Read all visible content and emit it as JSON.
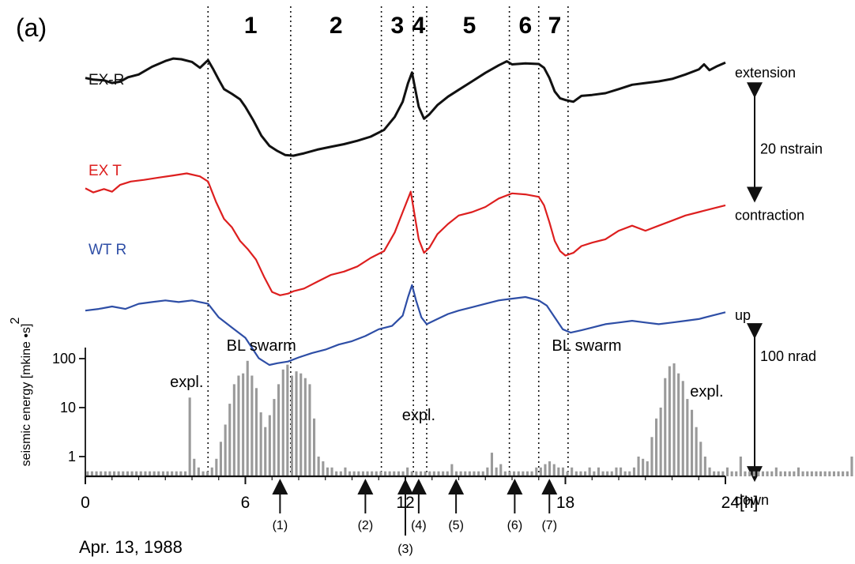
{
  "panel_label": "(a)",
  "date_label": "Apr. 13, 1988",
  "chart_data": {
    "type": "line",
    "x_range": [
      0,
      24
    ],
    "x_ticks": [
      {
        "value": 0,
        "label": "0"
      },
      {
        "value": 6,
        "label": "6"
      },
      {
        "value": 12,
        "label": "12"
      },
      {
        "value": 18,
        "label": "18"
      },
      {
        "value": 24,
        "label": "24[h]"
      }
    ],
    "phases": {
      "boundaries": [
        4.6,
        7.7,
        11.1,
        12.3,
        12.8,
        15.9,
        17.0,
        18.1
      ],
      "labels": [
        {
          "label": "1",
          "x": 6.2
        },
        {
          "label": "2",
          "x": 9.4
        },
        {
          "label": "3",
          "x": 11.7
        },
        {
          "label": "4",
          "x": 12.5
        },
        {
          "label": "5",
          "x": 14.4
        },
        {
          "label": "6",
          "x": 16.5
        },
        {
          "label": "7",
          "x": 17.6
        }
      ]
    },
    "series": [
      {
        "name": "EX-R",
        "color": "#111111",
        "x": [
          0,
          0.3,
          0.7,
          1.0,
          1.3,
          1.6,
          2.0,
          2.5,
          3.0,
          3.3,
          3.6,
          4.0,
          4.3,
          4.5,
          4.6,
          4.8,
          5.0,
          5.2,
          5.5,
          5.8,
          6.0,
          6.3,
          6.6,
          6.9,
          7.2,
          7.5,
          7.8,
          8.2,
          8.7,
          9.2,
          9.7,
          10.2,
          10.7,
          11.2,
          11.6,
          11.9,
          12.1,
          12.25,
          12.35,
          12.5,
          12.7,
          12.9,
          13.2,
          13.6,
          14.0,
          14.5,
          15.0,
          15.5,
          15.8,
          16.0,
          16.5,
          17.0,
          17.2,
          17.4,
          17.6,
          17.8,
          18.0,
          18.3,
          18.6,
          19.0,
          19.5,
          20.0,
          20.5,
          21.0,
          21.5,
          22.0,
          22.5,
          23.0,
          23.2,
          23.4,
          23.7,
          24.0
        ],
        "y": [
          -5.5,
          -6.0,
          -6.2,
          -7.0,
          -6.6,
          -5.3,
          -4.5,
          -2.2,
          -0.5,
          0.2,
          0.0,
          -0.8,
          -2.5,
          -1.0,
          -0.3,
          -3.0,
          -6.0,
          -8.8,
          -10.2,
          -11.8,
          -14.0,
          -18.0,
          -22.5,
          -25.5,
          -27.0,
          -28.2,
          -28.4,
          -27.7,
          -26.6,
          -25.8,
          -25.0,
          -24.0,
          -22.8,
          -20.8,
          -17.0,
          -12.5,
          -7.0,
          -3.9,
          -8.0,
          -14.0,
          -17.5,
          -16.2,
          -13.5,
          -11.0,
          -9.0,
          -6.5,
          -4.0,
          -1.8,
          -0.6,
          -1.5,
          -1.2,
          -1.4,
          -2.5,
          -5.5,
          -9.5,
          -11.5,
          -12.0,
          -12.5,
          -10.8,
          -10.5,
          -10.0,
          -8.8,
          -7.5,
          -7.0,
          -6.5,
          -5.8,
          -4.5,
          -3.0,
          -1.5,
          -3.2,
          -2.0,
          -1.0
        ]
      },
      {
        "name": "EX T",
        "color": "#dd1f1f",
        "x": [
          0,
          0.3,
          0.7,
          1.0,
          1.3,
          1.7,
          2.2,
          2.8,
          3.3,
          3.8,
          4.3,
          4.6,
          4.9,
          5.2,
          5.5,
          5.8,
          6.1,
          6.4,
          6.7,
          7.0,
          7.3,
          7.6,
          7.8,
          8.2,
          8.7,
          9.2,
          9.7,
          10.2,
          10.7,
          11.2,
          11.6,
          11.9,
          12.1,
          12.2,
          12.35,
          12.5,
          12.7,
          12.9,
          13.2,
          13.6,
          14.0,
          14.5,
          15.0,
          15.5,
          16.0,
          16.5,
          17.0,
          17.2,
          17.4,
          17.6,
          17.8,
          18.0,
          18.3,
          18.6,
          19.0,
          19.5,
          20.0,
          20.5,
          21.0,
          21.5,
          22.0,
          22.5,
          23.0,
          23.5,
          24.0
        ],
        "y": [
          -38.0,
          -39.2,
          -38.2,
          -39.0,
          -37.0,
          -36.0,
          -35.5,
          -34.8,
          -34.2,
          -33.6,
          -34.5,
          -36.0,
          -42.0,
          -47.0,
          -49.5,
          -53.5,
          -56.0,
          -59.0,
          -64.0,
          -68.5,
          -69.5,
          -69.0,
          -68.3,
          -67.5,
          -65.5,
          -63.5,
          -62.5,
          -61.0,
          -58.5,
          -56.5,
          -51.0,
          -45.0,
          -41.0,
          -39.0,
          -46.0,
          -53.0,
          -57.0,
          -55.5,
          -51.5,
          -48.5,
          -46.0,
          -45.0,
          -43.5,
          -41.0,
          -39.5,
          -39.8,
          -40.5,
          -43.0,
          -48.0,
          -53.5,
          -56.5,
          -57.8,
          -57.0,
          -55.0,
          -54.0,
          -53.0,
          -50.5,
          -49.0,
          -50.5,
          -49.0,
          -47.5,
          -46.0,
          -45.0,
          -44.0,
          -43.0
        ]
      },
      {
        "name": "WT R",
        "color": "#2e4ea6",
        "x": [
          0,
          0.5,
          1.0,
          1.5,
          2.0,
          2.5,
          3.0,
          3.5,
          4.0,
          4.6,
          5.0,
          5.5,
          6.0,
          6.5,
          6.9,
          7.2,
          7.6,
          8.0,
          8.5,
          9.0,
          9.5,
          10.0,
          10.5,
          11.0,
          11.5,
          11.9,
          12.1,
          12.25,
          12.4,
          12.6,
          12.8,
          13.2,
          13.6,
          14.0,
          14.5,
          15.0,
          15.5,
          16.0,
          16.5,
          17.0,
          17.3,
          17.6,
          17.9,
          18.2,
          18.6,
          19.0,
          19.5,
          20.0,
          20.5,
          21.0,
          21.5,
          22.0,
          22.5,
          23.0,
          23.5,
          24.0
        ],
        "y": [
          -74.0,
          -73.5,
          -72.8,
          -73.5,
          -72.0,
          -71.5,
          -71.0,
          -71.5,
          -71.0,
          -72.0,
          -76.0,
          -79.0,
          -82.0,
          -88.0,
          -90.0,
          -89.5,
          -89.0,
          -87.8,
          -86.5,
          -85.5,
          -84.0,
          -83.0,
          -81.5,
          -79.5,
          -78.5,
          -75.5,
          -70.0,
          -66.5,
          -71.0,
          -76.0,
          -78.0,
          -76.5,
          -75.0,
          -74.0,
          -73.0,
          -72.0,
          -71.0,
          -70.5,
          -70.0,
          -71.0,
          -72.5,
          -76.0,
          -79.5,
          -80.5,
          -79.8,
          -79.0,
          -78.0,
          -77.5,
          -77.0,
          -77.5,
          -78.0,
          -77.5,
          -77.0,
          -76.5,
          -75.5,
          -74.5
        ]
      }
    ],
    "strain_scale": {
      "top": "extension",
      "bottom": "contraction",
      "amount": "20 nstrain",
      "y_top": -4,
      "y_bottom": -45
    },
    "tilt_scale": {
      "top": "up",
      "bottom": "down",
      "amount": "100 nrad",
      "y_top": -67,
      "y_bottom": -97
    },
    "bars": {
      "ylabel": "seismic energy [mkine²•s]",
      "ylabel_sup": "2",
      "ylabel_main": "seismic energy [mkine •s]",
      "scale": "log",
      "y_ticks": [
        {
          "value": 1,
          "label": "1"
        },
        {
          "value": 10,
          "label": "10"
        },
        {
          "value": 100,
          "label": "100"
        }
      ],
      "bin_hours": 0.1666,
      "values": [
        0.5,
        0.5,
        0.5,
        0.5,
        0.5,
        0.5,
        0.5,
        0.5,
        0.5,
        0.5,
        0.5,
        0.5,
        0.5,
        0.5,
        0.5,
        0.5,
        0.5,
        0.5,
        0.5,
        0.5,
        0.5,
        0.5,
        0.5,
        16.0,
        0.9,
        0.6,
        0.5,
        0.5,
        0.6,
        0.9,
        2.0,
        4.5,
        12.0,
        30.0,
        45.0,
        50.0,
        90.0,
        45.0,
        25.0,
        8.0,
        4.0,
        7.0,
        15.0,
        30.0,
        60.0,
        75.0,
        45.0,
        55.0,
        50.0,
        40.0,
        30.0,
        6.0,
        1.0,
        0.8,
        0.6,
        0.6,
        0.5,
        0.5,
        0.6,
        0.5,
        0.5,
        0.5,
        0.5,
        0.5,
        0.5,
        0.5,
        0.5,
        0.5,
        0.5,
        0.5,
        0.5,
        0.5,
        0.6,
        0.5,
        0.5,
        0.5,
        0.5,
        0.5,
        0.5,
        0.5,
        0.5,
        0.5,
        0.7,
        0.5,
        0.5,
        0.5,
        0.5,
        0.5,
        0.5,
        0.5,
        0.6,
        1.2,
        0.6,
        0.7,
        0.5,
        0.5,
        0.5,
        0.5,
        0.5,
        0.5,
        0.5,
        0.6,
        0.6,
        0.7,
        0.8,
        0.7,
        0.6,
        0.6,
        0.5,
        0.6,
        0.5,
        0.5,
        0.5,
        0.6,
        0.5,
        0.6,
        0.5,
        0.5,
        0.5,
        0.6,
        0.6,
        0.5,
        0.5,
        0.6,
        1.0,
        0.9,
        0.8,
        2.5,
        6.0,
        10.0,
        40.0,
        70.0,
        80.0,
        50.0,
        35.0,
        15.0,
        9.0,
        4.0,
        2.0,
        1.0,
        0.6,
        0.5,
        0.5,
        0.5,
        0.6,
        0.5,
        0.5,
        1.0,
        0.5,
        0.5,
        0.5,
        0.5,
        0.5,
        0.5,
        0.5,
        0.6,
        0.5,
        0.5,
        0.5,
        0.5,
        0.6,
        0.5,
        0.5,
        0.5,
        0.5,
        0.5,
        0.5,
        0.5,
        0.5,
        0.5,
        0.5,
        0.5,
        1.0,
        0.5,
        0.5,
        0.5,
        0.5,
        0.5,
        0.5,
        0.5,
        0.5,
        0.5,
        0.5,
        0.5,
        0.5,
        0.6,
        0.5,
        0.5,
        0.5,
        0.5,
        0.5,
        0.5,
        0.5,
        0.5,
        0.5,
        0.5,
        0.5,
        0.5,
        0.5,
        0.5,
        0.5,
        0.5
      ]
    },
    "annotations": [
      {
        "text": "BL swarm",
        "x": 6.6,
        "band": "swarm"
      },
      {
        "text": "BL swarm",
        "x": 18.8,
        "band": "swarm"
      },
      {
        "text": "expl.",
        "x": 3.8,
        "band": "expl-high"
      },
      {
        "text": "expl.",
        "x": 12.5,
        "band": "expl-mid"
      },
      {
        "text": "expl.",
        "x": 23.3,
        "band": "expl-right"
      }
    ],
    "events": [
      {
        "label": "(1)",
        "x": 7.3
      },
      {
        "label": "(2)",
        "x": 10.5
      },
      {
        "label": "(3)",
        "x": 12.0
      },
      {
        "label": "(4)",
        "x": 12.5
      },
      {
        "label": "(5)",
        "x": 13.9
      },
      {
        "label": "(6)",
        "x": 16.1
      },
      {
        "label": "(7)",
        "x": 17.4
      }
    ]
  }
}
